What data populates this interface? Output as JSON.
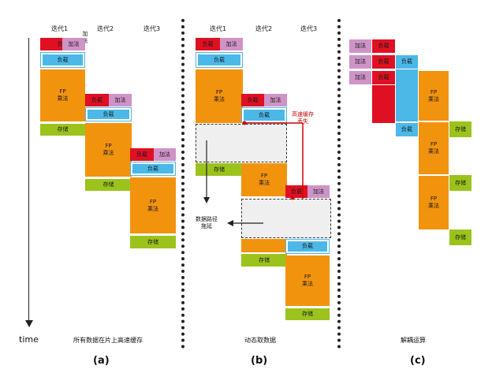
{
  "headers": {
    "a": [
      "迭代1",
      "迭代2",
      "迭代3"
    ],
    "b": [
      "迭代1",
      "迭代2",
      "迭代3"
    ]
  },
  "labels": {
    "load": "负载",
    "add": "加法",
    "mul": "FP\n乘法",
    "store": "存储"
  },
  "annotations": {
    "cache_miss": "高速缓存\n丢失",
    "stall": "数据路径\n拖延",
    "time": "time"
  },
  "captions": {
    "a": "所有数据在片上高速缓存",
    "b": "动态取数据",
    "c": "解耦运算"
  },
  "panel_labels": {
    "a": "(a)",
    "b": "(b)",
    "c": "(c)"
  },
  "colors": {
    "load": "#e01023",
    "add": "#cf93c7",
    "buffer": "#4bb8e8",
    "mul": "#f2930e",
    "store": "#9bc31c",
    "miss_line": "#d40000"
  }
}
